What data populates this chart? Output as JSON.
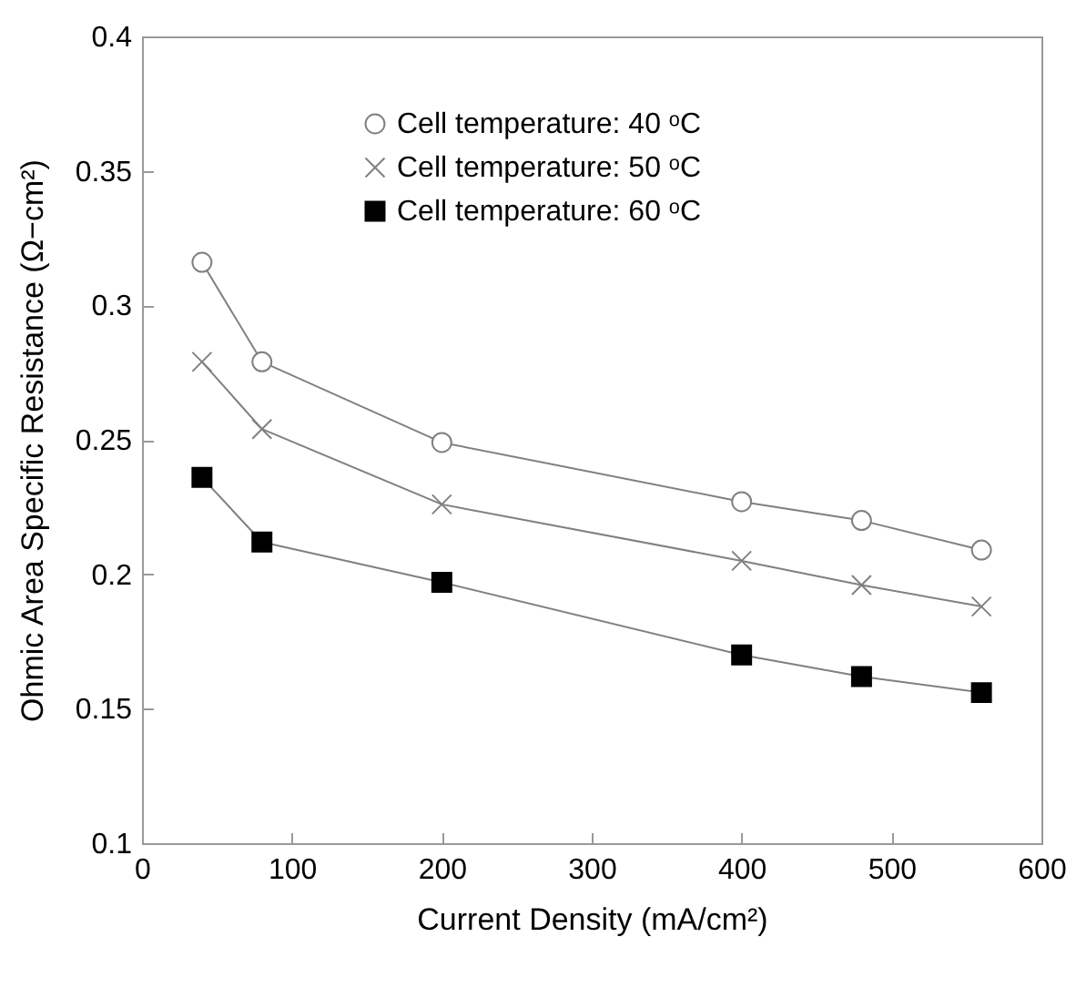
{
  "chart_data": {
    "type": "line",
    "xlabel": "Current Density (mA/cm²)",
    "ylabel": "Ohmic Area Specific Resistance (Ω−cm²)",
    "x": [
      40,
      80,
      200,
      400,
      480,
      560
    ],
    "series": [
      {
        "name": "Cell temperature: 40 ᵒC",
        "color": "#808080",
        "marker": "circle",
        "values": [
          0.316,
          0.279,
          0.249,
          0.227,
          0.22,
          0.209
        ]
      },
      {
        "name": "Cell temperature: 50 ᵒC",
        "color": "#808080",
        "marker": "cross",
        "values": [
          0.279,
          0.254,
          0.226,
          0.205,
          0.196,
          0.188
        ]
      },
      {
        "name": "Cell temperature: 60 ᵒC",
        "color": "#000000",
        "marker": "square",
        "values": [
          0.236,
          0.212,
          0.197,
          0.17,
          0.162,
          0.156
        ]
      }
    ],
    "xlim": [
      0,
      600
    ],
    "xticks": [
      0,
      100,
      200,
      300,
      400,
      500,
      600
    ],
    "ylim": [
      0.1,
      0.4
    ],
    "yticks": [
      0.1,
      0.15,
      0.2,
      0.25,
      0.3,
      0.35,
      0.4
    ],
    "grid": false,
    "legend": "top",
    "line_style": "solid"
  }
}
